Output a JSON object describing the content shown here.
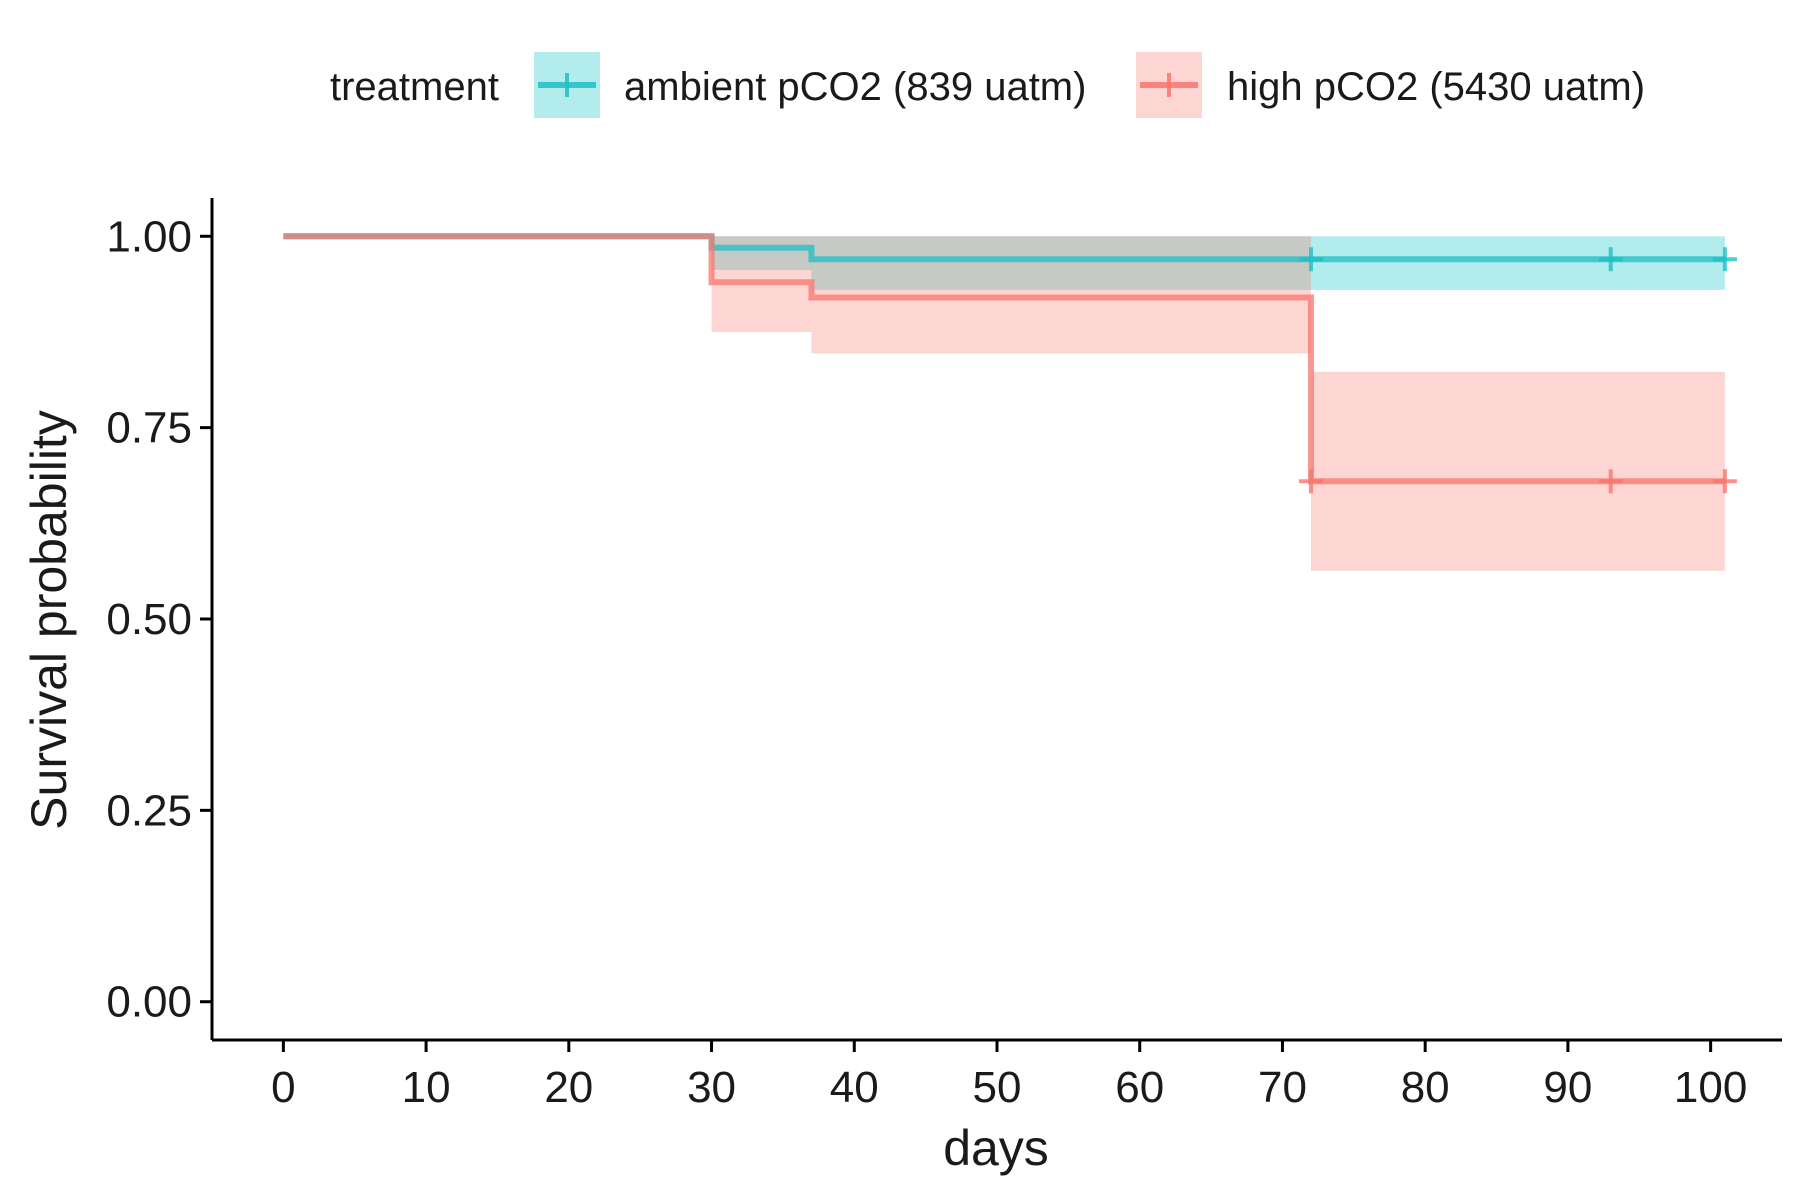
{
  "chart_data": {
    "type": "line",
    "subtype": "kaplan-meier step survival curve with confidence bands",
    "xlabel": "days",
    "ylabel": "Survival probability",
    "xlim": [
      -5,
      105
    ],
    "ylim": [
      -0.05,
      1.05
    ],
    "x_ticks": [
      0,
      10,
      20,
      30,
      40,
      50,
      60,
      70,
      80,
      90,
      100
    ],
    "y_ticks": [
      0.0,
      0.25,
      0.5,
      0.75,
      1.0
    ],
    "y_tick_labels": [
      "0.00",
      "0.25",
      "0.50",
      "0.75",
      "1.00"
    ],
    "grid": false,
    "legend": {
      "title": "treatment",
      "position": "top"
    },
    "series": [
      {
        "name": "ambient pCO2 (839 uatm)",
        "color": "#1fbfc4",
        "fill": "#00bfc4",
        "steps": [
          {
            "x": 0,
            "y": 1.0
          },
          {
            "x": 30,
            "y": 0.985
          },
          {
            "x": 37,
            "y": 0.97
          }
        ],
        "x_end": 101,
        "ci": [
          {
            "x0": 30,
            "x1": 37,
            "lower": 0.956,
            "upper": 1.0
          },
          {
            "x0": 37,
            "x1": 101,
            "lower": 0.93,
            "upper": 1.0
          }
        ],
        "censor_x": [
          72,
          93,
          101
        ],
        "censor_y": [
          0.97,
          0.97,
          0.97
        ]
      },
      {
        "name": "high pCO2 (5430 uatm)",
        "color": "#f8766d",
        "fill": "#f8766d",
        "steps": [
          {
            "x": 0,
            "y": 1.0
          },
          {
            "x": 30,
            "y": 0.94
          },
          {
            "x": 37,
            "y": 0.92
          },
          {
            "x": 72,
            "y": 0.68
          }
        ],
        "x_end": 101,
        "ci": [
          {
            "x0": 30,
            "x1": 37,
            "lower": 0.875,
            "upper": 1.0
          },
          {
            "x0": 37,
            "x1": 72,
            "lower": 0.847,
            "upper": 1.0
          },
          {
            "x0": 72,
            "x1": 101,
            "lower": 0.563,
            "upper": 0.823
          }
        ],
        "censor_x": [
          72,
          93,
          101
        ],
        "censor_y": [
          0.68,
          0.68,
          0.68
        ]
      }
    ],
    "overlap_color": "#999999"
  }
}
